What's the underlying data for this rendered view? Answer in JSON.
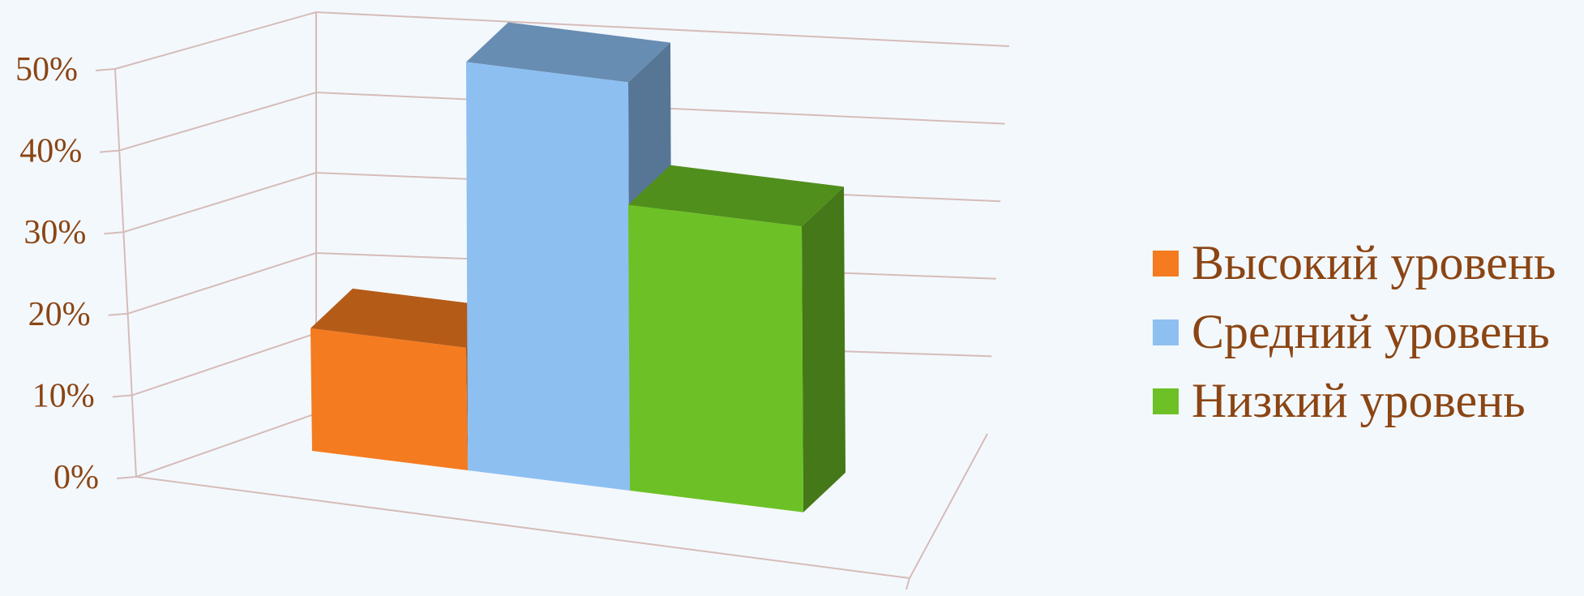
{
  "chart_data": {
    "type": "bar",
    "style": "3d-clustered-column",
    "title": "",
    "xlabel": "",
    "ylabel": "",
    "ylim": [
      0,
      50
    ],
    "y_ticks": [
      "0%",
      "10%",
      "20%",
      "30%",
      "40%",
      "50%"
    ],
    "grid": true,
    "legend_position": "right",
    "series": [
      {
        "name": "Высокий уровень",
        "value": 15,
        "color": "#f47b20"
      },
      {
        "name": "Средний уровень",
        "value": 50,
        "color": "#8dbff1"
      },
      {
        "name": "Низкий уровень",
        "value": 35,
        "color": "#6dc126"
      }
    ]
  },
  "colors": {
    "background": "#f3f8fd",
    "text": "#8b4513",
    "gridline": "#d6bcb8"
  }
}
